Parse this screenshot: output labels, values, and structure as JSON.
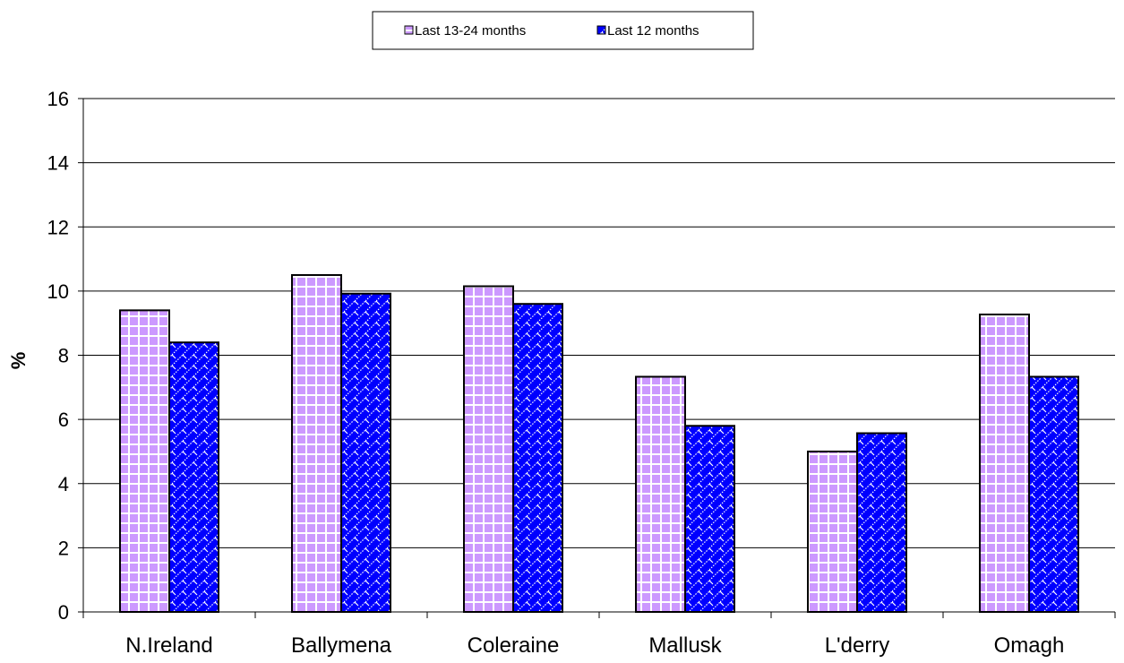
{
  "chart_data": {
    "type": "bar",
    "categories": [
      "N.Ireland",
      "Ballymena",
      "Coleraine",
      "Mallusk",
      "L'derry",
      "Omagh"
    ],
    "series": [
      {
        "name": "Last 13-24 months",
        "values": [
          9.4,
          10.5,
          10.15,
          7.33,
          5.0,
          9.27
        ],
        "color": "#cc99ff",
        "pattern": "grid"
      },
      {
        "name": "Last 12 months",
        "values": [
          8.4,
          9.92,
          9.6,
          5.8,
          5.57,
          7.33
        ],
        "color": "#0000ff",
        "pattern": "diagonal-weave"
      }
    ],
    "title": "",
    "xlabel": "",
    "ylabel": "%",
    "ylim": [
      0,
      16
    ],
    "yticks": [
      0,
      2,
      4,
      6,
      8,
      10,
      12,
      14,
      16
    ],
    "grid": true,
    "legend": "top-center"
  }
}
